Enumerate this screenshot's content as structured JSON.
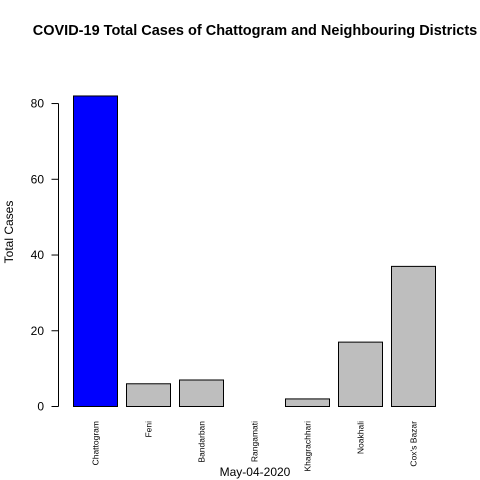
{
  "chart_data": {
    "type": "bar",
    "title": "COVID-19 Total Cases of Chattogram and Neighbouring Districts",
    "xlabel": "May-04-2020",
    "ylabel": "Total Cases",
    "categories": [
      "Chattogram",
      "Feni",
      "Bandarban",
      "Rangamati",
      "Khagrachhari",
      "Noakhali",
      "Cox's Bazar"
    ],
    "values": [
      82,
      6,
      7,
      0,
      2,
      17,
      37
    ],
    "colors": [
      "#0000ff",
      "#bebebe",
      "#bebebe",
      "#bebebe",
      "#bebebe",
      "#bebebe",
      "#bebebe"
    ],
    "yticks": [
      0,
      20,
      40,
      60,
      80
    ],
    "ylim": [
      0,
      82
    ],
    "grid": false,
    "legend": "none"
  }
}
